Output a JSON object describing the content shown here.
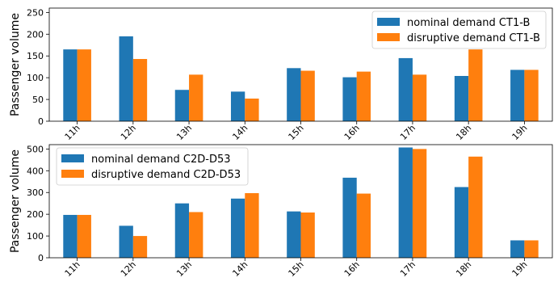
{
  "chart_data": [
    {
      "type": "bar",
      "title": "",
      "xlabel": "",
      "ylabel": "Passenger volume",
      "categories": [
        "11h",
        "12h",
        "13h",
        "14h",
        "15h",
        "16h",
        "17h",
        "18h",
        "19h"
      ],
      "ylim": [
        0,
        260
      ],
      "yticks": [
        0,
        50,
        100,
        150,
        200,
        250
      ],
      "legend_position": "top-right",
      "series": [
        {
          "name": "nominal demand CT1-B",
          "color": "#1f77b4",
          "values": [
            165,
            195,
            72,
            68,
            122,
            101,
            145,
            104,
            118
          ]
        },
        {
          "name": "disruptive demand CT1-B",
          "color": "#ff7f0e",
          "values": [
            165,
            143,
            107,
            52,
            116,
            114,
            107,
            165,
            118
          ]
        }
      ]
    },
    {
      "type": "bar",
      "title": "",
      "xlabel": "",
      "ylabel": "Passenger volume",
      "categories": [
        "11h",
        "12h",
        "13h",
        "14h",
        "15h",
        "16h",
        "17h",
        "18h",
        "19h"
      ],
      "ylim": [
        0,
        520
      ],
      "yticks": [
        0,
        100,
        200,
        300,
        400,
        500
      ],
      "legend_position": "top-left",
      "series": [
        {
          "name": "nominal demand C2D-D53",
          "color": "#1f77b4",
          "values": [
            197,
            147,
            250,
            272,
            213,
            368,
            507,
            325,
            80
          ]
        },
        {
          "name": "disruptive demand C2D-D53",
          "color": "#ff7f0e",
          "values": [
            197,
            100,
            210,
            297,
            208,
            295,
            500,
            465,
            80
          ]
        }
      ]
    }
  ]
}
